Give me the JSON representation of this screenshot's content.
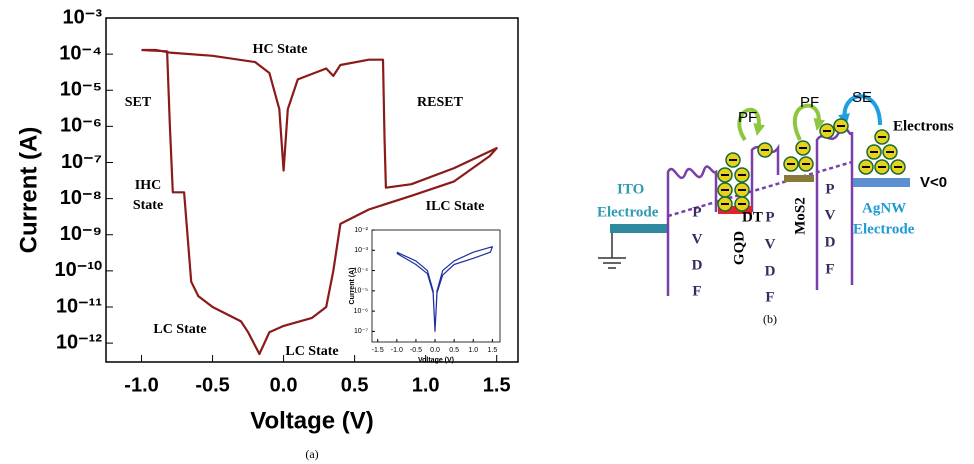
{
  "chart_data": [
    {
      "type": "line",
      "xlabel": "Voltage (V)",
      "ylabel": "Current (A)",
      "log_y": true,
      "xlim": [
        -1.25,
        1.65
      ],
      "ylim": [
        3e-13,
        0.001
      ],
      "xticks": [
        {
          "value": -1,
          "label": "-1.0"
        },
        -0.5,
        {
          "value": 0,
          "label": "0.0"
        },
        0.5,
        {
          "value": 1,
          "label": "1.0"
        },
        1.5
      ],
      "yticks": [
        {
          "value": 0.001,
          "label": "10⁻³"
        },
        {
          "value": 0.0001,
          "label": "10⁻⁴"
        },
        {
          "value": 1e-05,
          "label": "10⁻⁵"
        },
        {
          "value": 1e-06,
          "label": "10⁻⁶"
        },
        {
          "value": 1e-07,
          "label": "10⁻⁷"
        },
        {
          "value": 1e-08,
          "label": "10⁻⁸"
        },
        {
          "value": 1e-09,
          "label": "10⁻⁹"
        },
        {
          "value": 1e-10,
          "label": "10⁻¹⁰"
        },
        {
          "value": 1e-11,
          "label": "10⁻¹¹"
        },
        {
          "value": 1e-12,
          "label": "10⁻¹²"
        }
      ],
      "series": [
        {
          "color": "#8b1a1a",
          "x": [
            -1.0,
            -0.9,
            -0.8,
            -0.5,
            -0.2,
            -0.1,
            -0.03,
            0.0,
            0.03,
            0.1,
            0.3,
            0.35,
            0.4,
            0.6,
            0.7,
            0.71,
            0.72,
            0.9,
            1.2,
            1.5,
            1.45,
            1.2,
            0.9,
            0.6,
            0.4,
            0.35,
            0.3,
            0.2,
            0.0,
            -0.1,
            -0.17,
            -0.25,
            -0.3,
            -0.5,
            -0.6,
            -0.65,
            -0.7,
            -0.78,
            -0.8,
            -0.82,
            -1.0
          ],
          "values": [
            0.00013,
            0.00013,
            0.00011,
            9e-05,
            6e-05,
            3e-05,
            3e-06,
            6e-08,
            3e-06,
            2e-05,
            4e-05,
            2.5e-05,
            5e-05,
            7e-05,
            7e-05,
            5e-07,
            2e-08,
            2.5e-08,
            7e-08,
            2.5e-07,
            1.5e-07,
            3e-08,
            1.2e-08,
            5e-09,
            2e-09,
            1e-10,
            1e-11,
            5e-12,
            3e-12,
            2e-12,
            5e-13,
            2e-12,
            4e-12,
            1e-11,
            2e-11,
            5e-11,
            1.5e-08,
            1.5e-08,
            1e-06,
            0.00012,
            0.00013
          ]
        }
      ],
      "annotations": [
        "HC State",
        "SET",
        "RESET",
        "IHC",
        "State",
        "ILC State",
        "LC State",
        "LC State"
      ]
    },
    {
      "type": "line",
      "xlabel": "Voltage (V)",
      "ylabel": "Current (A)",
      "log_y": true,
      "xlim": [
        -1.65,
        1.7
      ],
      "ylim": [
        3e-08,
        0.01
      ],
      "xticks": [
        -1.5,
        {
          "value": -1,
          "label": "-1.0"
        },
        -0.5,
        {
          "value": 0,
          "label": "0.0"
        },
        0.5,
        {
          "value": 1,
          "label": "1.0"
        },
        1.5
      ],
      "yticks": [
        {
          "value": 0.01,
          "label": "10⁻²"
        },
        {
          "value": 0.001,
          "label": "10⁻³"
        },
        {
          "value": 0.0001,
          "label": "10⁻⁴"
        },
        {
          "value": 1e-05,
          "label": "10⁻⁵"
        },
        {
          "value": 1e-06,
          "label": "10⁻⁶"
        },
        {
          "value": 1e-07,
          "label": "10⁻⁷"
        }
      ],
      "series": [
        {
          "color": "#1f2f9f",
          "x": [
            -1.0,
            -0.5,
            -0.2,
            -0.05,
            0.0,
            0.05,
            0.2,
            0.5,
            1.0,
            1.5,
            1.45,
            1.0,
            0.5,
            0.2,
            0.05,
            0.0,
            -0.05,
            -0.2,
            -0.5,
            -1.0
          ],
          "values": [
            0.0008,
            0.0003,
            0.0001,
            1e-05,
            1e-07,
            1e-05,
            0.0001,
            0.0003,
            0.0008,
            0.0015,
            0.0008,
            0.0004,
            0.0002,
            6e-05,
            8e-06,
            1e-07,
            8e-06,
            7e-05,
            0.0002,
            0.0007
          ]
        }
      ]
    }
  ],
  "captions": [
    "(a)",
    "(b)"
  ],
  "diagram": {
    "ito_electrode": [
      "ITO",
      "Electrode"
    ],
    "pvdf": [
      [
        "P",
        "V",
        "D",
        "F"
      ],
      [
        "P",
        "V",
        "D",
        "F"
      ],
      [
        "P",
        "V",
        "D",
        "F"
      ]
    ],
    "gqd": "GQD",
    "dt": "DT",
    "mos2": "MoS2",
    "agnw_electrode": [
      "AgNW",
      "Electrode"
    ],
    "transitions": [
      "PF",
      "PF",
      "SE"
    ],
    "electrons": "Electrons",
    "bias": "V<0"
  }
}
